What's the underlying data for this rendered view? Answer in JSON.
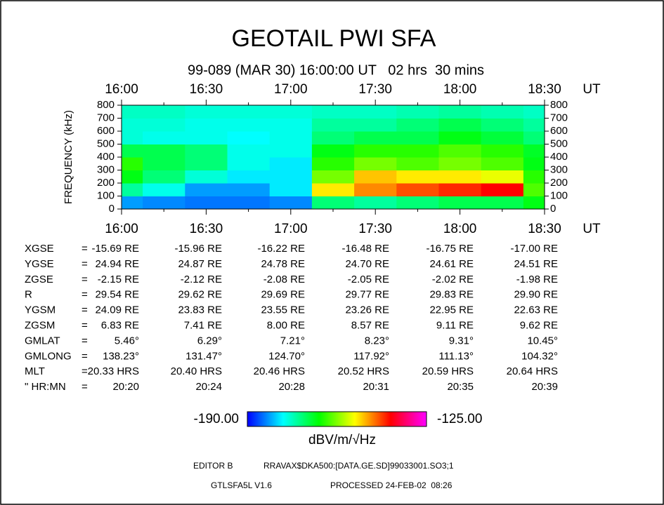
{
  "chart_data": {
    "type": "heatmap",
    "title": "GEOTAIL PWI SFA",
    "subtitle": "99-089 (MAR 30) 16:00:00 UT   02 hrs  30 mins",
    "x_unit": "UT",
    "y_label": "FREQUENCY (kHz)",
    "categories": [
      "16:00",
      null,
      "16:30",
      null,
      "17:00",
      null,
      "17:30",
      null,
      "18:00",
      null,
      "18:30"
    ],
    "ylim": [
      0,
      800
    ],
    "yticks": [
      0,
      100,
      200,
      300,
      400,
      500,
      600,
      700,
      800
    ],
    "z": [
      [
        -182,
        -183,
        -184,
        -184,
        -183,
        -170,
        -172,
        -170,
        -168,
        -168,
        -165
      ],
      [
        -172,
        -176,
        -182,
        -182,
        -178,
        -150,
        -145,
        -142,
        -140,
        -138,
        -160
      ],
      [
        -165,
        -170,
        -175,
        -178,
        -178,
        -158,
        -148,
        -150,
        -150,
        -152,
        -162
      ],
      [
        -162,
        -168,
        -170,
        -176,
        -178,
        -162,
        -158,
        -160,
        -158,
        -160,
        -165
      ],
      [
        -168,
        -168,
        -170,
        -176,
        -176,
        -165,
        -162,
        -162,
        -160,
        -162,
        -166
      ],
      [
        -175,
        -176,
        -176,
        -177,
        -176,
        -170,
        -168,
        -168,
        -165,
        -167,
        -170
      ],
      [
        -175,
        -175,
        -176,
        -176,
        -176,
        -172,
        -172,
        -170,
        -168,
        -170,
        -172
      ],
      [
        -174,
        -174,
        -175,
        -175,
        -175,
        -174,
        -174,
        -173,
        -172,
        -173,
        -174
      ]
    ],
    "colorscale": [
      "#0000ff",
      "#00ffff",
      "#00ff00",
      "#ffff00",
      "#ff0000",
      "#ff00ff"
    ],
    "colorbar": {
      "min": {
        "value": -190,
        "label": "-190.00"
      },
      "max": {
        "value": -125,
        "label": "-125.00"
      },
      "label": "dBV/m/√Hz"
    }
  },
  "table": {
    "rows": [
      {
        "label": "XGSE",
        "sep": "=",
        "cells": [
          "-15.69 RE",
          "-15.96 RE",
          "-16.22 RE",
          "-16.48 RE",
          "-16.75 RE",
          "-17.00 RE"
        ]
      },
      {
        "label": "YGSE",
        "sep": "=",
        "cells": [
          "24.94 RE",
          "24.87 RE",
          "24.78 RE",
          "24.70 RE",
          "24.61 RE",
          "24.51 RE"
        ]
      },
      {
        "label": "ZGSE",
        "sep": "=",
        "cells": [
          "-2.15 RE",
          "-2.12 RE",
          "-2.08 RE",
          "-2.05 RE",
          "-2.02 RE",
          "-1.98 RE"
        ]
      },
      {
        "label": "R",
        "sep": "=",
        "cells": [
          "29.54 RE",
          "29.62 RE",
          "29.69 RE",
          "29.77 RE",
          "29.83 RE",
          "29.90 RE"
        ]
      },
      {
        "label": "YGSM",
        "sep": "=",
        "cells": [
          "24.09 RE",
          "23.83 RE",
          "23.55 RE",
          "23.26 RE",
          "22.95 RE",
          "22.63 RE"
        ]
      },
      {
        "label": "ZGSM",
        "sep": "=",
        "cells": [
          "6.83 RE",
          "7.41 RE",
          "8.00 RE",
          "8.57 RE",
          "9.11 RE",
          "9.62 RE"
        ]
      },
      {
        "label": "GMLAT",
        "sep": "=",
        "cells": [
          "5.46°",
          "6.29°",
          "7.21°",
          "8.23°",
          "9.31°",
          "10.45°"
        ]
      },
      {
        "label": "GMLONG",
        "sep": "=",
        "cells": [
          "138.23°",
          "131.47°",
          "124.70°",
          "117.92°",
          "111.13°",
          "104.32°"
        ]
      },
      {
        "label": "MLT",
        "sep": "=",
        "cells": [
          "20.33 HRS",
          "20.40 HRS",
          "20.46 HRS",
          "20.52 HRS",
          "20.59 HRS",
          "20.64 HRS"
        ]
      },
      {
        "label": "\" HR:MN",
        "sep": "=",
        "cells": [
          "20:20",
          "20:24",
          "20:28",
          "20:31",
          "20:35",
          "20:39"
        ]
      }
    ]
  },
  "footer": {
    "editor": "EDITOR B",
    "file": "RRAVAX$DKA500:[DATA.GE.SD]99033001.SO3;1",
    "version": "GTLSFA5L V1.6",
    "processed": "PROCESSED 24-FEB-02  08:26"
  }
}
